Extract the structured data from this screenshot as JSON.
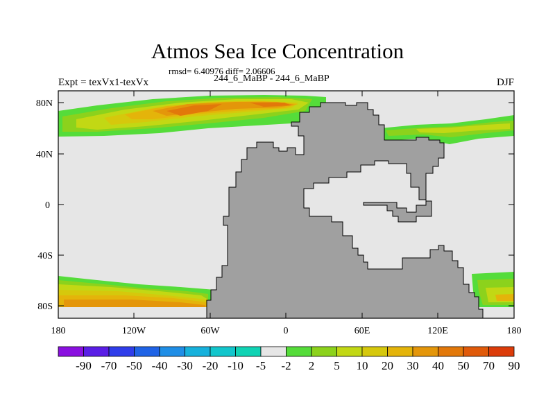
{
  "header": {
    "title": "Atmos Sea Ice Concentration",
    "stats": "rmsd= 6.40976 diff= 2.06606",
    "expt": "Expt = texVx1-texVx",
    "center": "244_6_MaBP - 244_6_MaBP",
    "season": "DJF"
  },
  "map": {
    "background_color": "#e6e6e6",
    "land_color": "#a0a0a0",
    "lat_range": [
      -90,
      90
    ],
    "lon_range": [
      -180,
      180
    ],
    "lat_ticks": [
      "80N",
      "40N",
      "0",
      "40S",
      "80S"
    ],
    "lon_ticks": [
      "180",
      "120W",
      "60W",
      "0",
      "60E",
      "120E",
      "180"
    ]
  },
  "colorbar": {
    "colors": [
      "#8a10e0",
      "#5a1ee6",
      "#2f3dea",
      "#1f63e6",
      "#1f8ee6",
      "#16b1dc",
      "#12c6cc",
      "#10d3b4",
      "#e6e6e6",
      "#55dc3a",
      "#8cd21c",
      "#c2d814",
      "#d6c80c",
      "#e4b40a",
      "#e4960a",
      "#e2780a",
      "#e05a0a",
      "#dc3c0a"
    ],
    "labels": [
      "-90",
      "-70",
      "-50",
      "-40",
      "-30",
      "-20",
      "-10",
      "-5",
      "-2",
      "2",
      "5",
      "10",
      "20",
      "30",
      "40",
      "50",
      "70",
      "90"
    ]
  }
}
